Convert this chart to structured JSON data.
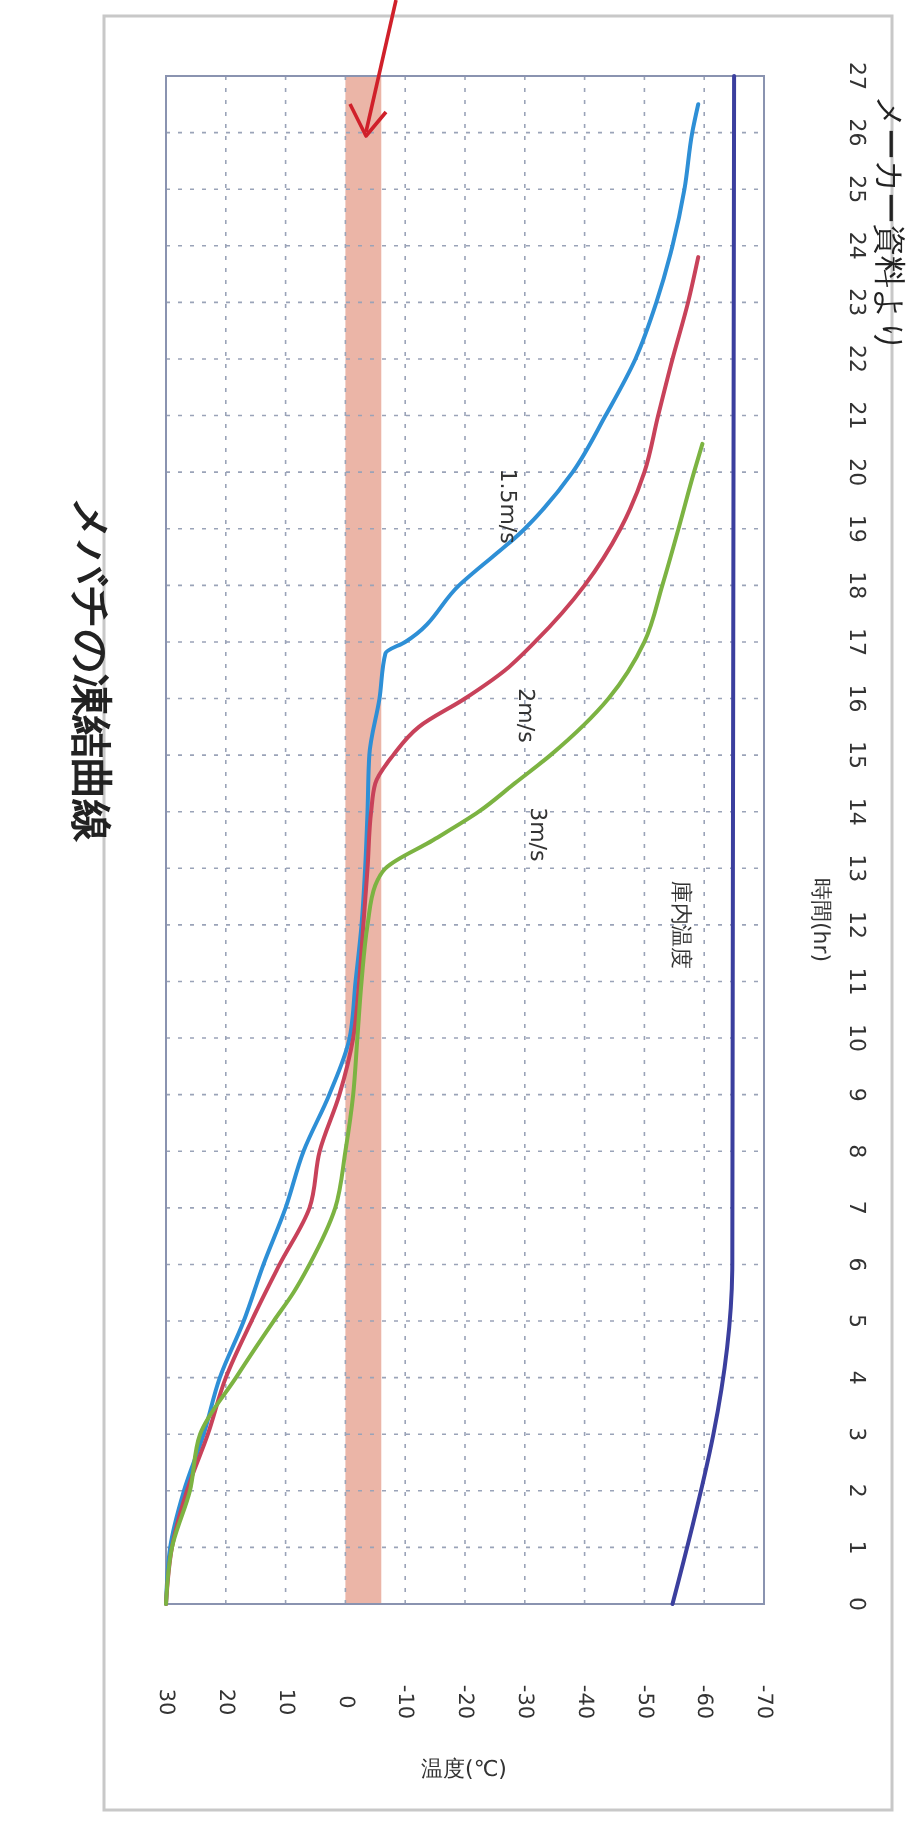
{
  "chart_data": {
    "type": "line",
    "title": "メバチの凍結曲線",
    "xlabel": "温度(℃)",
    "ylabel": "時間(hr)",
    "annotations": [
      "メーカー資料より"
    ],
    "xlim": [
      30,
      -70
    ],
    "xticks": [
      30,
      20,
      10,
      0,
      -10,
      -20,
      -30,
      -40,
      -50,
      -60,
      -70
    ],
    "ylim": [
      0,
      27
    ],
    "yticks": [
      0,
      1,
      2,
      3,
      4,
      5,
      6,
      7,
      8,
      9,
      10,
      11,
      12,
      13,
      14,
      15,
      16,
      17,
      18,
      19,
      20,
      21,
      22,
      23,
      24,
      25,
      26,
      27
    ],
    "grid": true,
    "legend": false,
    "bands": [
      {
        "axis": "x",
        "from": 0,
        "to": -6,
        "color": "#e8a898"
      }
    ],
    "series": [
      {
        "name": "1.5m/s",
        "color": "#2e8fd6",
        "values": [
          0,
          1,
          2,
          3,
          4,
          5,
          6,
          7,
          8,
          9,
          10,
          11,
          12,
          13,
          14,
          15,
          16,
          16.8,
          17,
          18,
          19,
          20,
          21,
          22,
          23,
          24,
          25,
          26,
          26.5
        ],
        "x": [
          30,
          29.3,
          27,
          23.7,
          21,
          17,
          13.7,
          10,
          7,
          2.7,
          -0.7,
          -1.7,
          -2.7,
          -3.3,
          -3.7,
          -4,
          -5.7,
          -6.7,
          -10,
          -19,
          -30,
          -38,
          -43.5,
          -48.5,
          -52,
          -54.7,
          -56.7,
          -58,
          -59
        ]
      },
      {
        "name": "2m/s",
        "color": "#c8425a",
        "values": [
          0,
          1,
          2,
          3,
          4,
          5,
          6,
          7,
          8,
          9,
          10,
          11,
          12,
          13,
          14,
          14.5,
          15,
          15.5,
          16,
          16.5,
          17,
          18,
          19,
          20,
          21,
          22,
          23,
          23.8
        ],
        "x": [
          30,
          29,
          26.5,
          23,
          20,
          15.7,
          11,
          6,
          4.3,
          1,
          -1.3,
          -2.3,
          -3,
          -3.7,
          -4.3,
          -5,
          -8,
          -12.3,
          -20,
          -26.7,
          -31.7,
          -40,
          -46,
          -50,
          -52.3,
          -54.7,
          -57.3,
          -59
        ]
      },
      {
        "name": "3m/s",
        "color": "#7cb342",
        "values": [
          0,
          1,
          2,
          3,
          4,
          5,
          5.5,
          6,
          7,
          8,
          9,
          10,
          11,
          12,
          12.7,
          13,
          13.5,
          14,
          14.5,
          15,
          16,
          17,
          18,
          19,
          20,
          20.5
        ],
        "x": [
          30,
          29,
          26,
          24.3,
          18.3,
          12,
          8.7,
          6,
          1.7,
          0,
          -1.3,
          -2,
          -2.7,
          -3.7,
          -5,
          -6.7,
          -14.7,
          -22.3,
          -28.3,
          -34.3,
          -44,
          -50,
          -53,
          -55.7,
          -58.3,
          -59.7
        ]
      },
      {
        "name": "庫内温度",
        "color": "#3b3f9e",
        "values": [
          0,
          6,
          27
        ],
        "x": [
          -54.7,
          -64.7,
          -65
        ]
      }
    ]
  }
}
